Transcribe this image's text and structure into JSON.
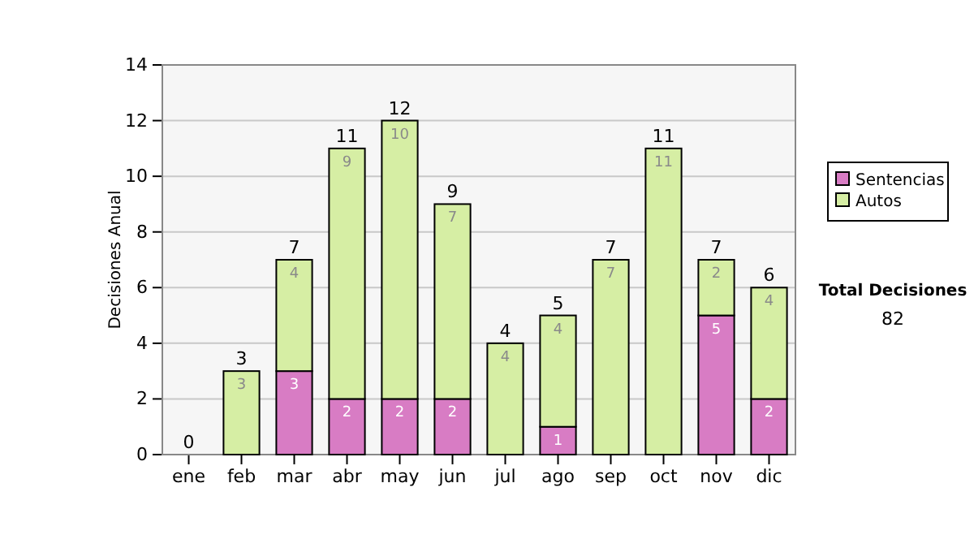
{
  "chart_data": {
    "type": "bar",
    "stacked": true,
    "ylabel": "Decisiones Anual",
    "categories": [
      "ene",
      "feb",
      "mar",
      "abr",
      "may",
      "jun",
      "jul",
      "ago",
      "sep",
      "oct",
      "nov",
      "dic"
    ],
    "series": [
      {
        "name": "Sentencias",
        "color": "#d87cc4",
        "values": [
          0,
          0,
          3,
          2,
          2,
          2,
          0,
          1,
          0,
          0,
          5,
          2
        ],
        "value_labels": [
          null,
          null,
          "3",
          "2",
          "2",
          "2",
          null,
          "1",
          null,
          null,
          "5",
          "2"
        ]
      },
      {
        "name": "Autos",
        "color": "#d6eea4",
        "values": [
          0,
          3,
          4,
          9,
          10,
          7,
          4,
          4,
          7,
          11,
          2,
          4
        ],
        "value_labels": [
          null,
          "3",
          "4",
          "9",
          "10",
          "7",
          "4",
          "4",
          "7",
          "11",
          "2",
          "4"
        ]
      }
    ],
    "totals": [
      "0",
      "3",
      "7",
      "11",
      "12",
      "9",
      "4",
      "5",
      "7",
      "11",
      "7",
      "6"
    ],
    "ylim": [
      0,
      14
    ],
    "yticks": [
      0,
      2,
      4,
      6,
      8,
      10,
      12,
      14
    ],
    "grid": "y",
    "legend": "right",
    "annotations": [
      "Total Decisiones",
      "82"
    ]
  }
}
